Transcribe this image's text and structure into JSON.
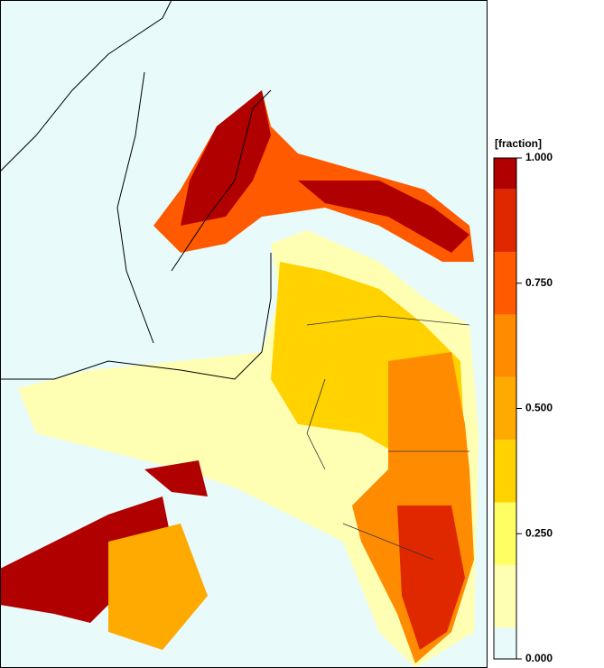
{
  "colorbar": {
    "label": "[fraction]",
    "ylim": [
      0,
      1
    ],
    "ticks": [
      {
        "value": 1,
        "label": "1.000"
      },
      {
        "value": 0.75,
        "label": "0.750"
      },
      {
        "value": 0.5,
        "label": "0.500"
      },
      {
        "value": 0.25,
        "label": "0.250"
      },
      {
        "value": 0,
        "label": "0.000"
      }
    ],
    "levels": [
      0,
      0.0625,
      0.1875,
      0.3125,
      0.4375,
      0.5625,
      0.6875,
      0.8125,
      0.9375,
      1
    ],
    "colors": [
      "#e8fafa",
      "#ffffb4",
      "#ffff64",
      "#ffd200",
      "#ffaa00",
      "#ff8c00",
      "#ff5a00",
      "#e02800",
      "#b00000"
    ]
  }
}
